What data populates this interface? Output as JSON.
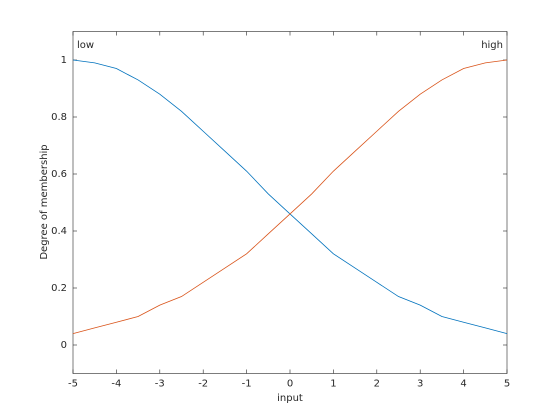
{
  "chart_data": {
    "type": "line",
    "xlabel": "input",
    "ylabel": "Degree of membership",
    "annotations": [
      "low",
      "high"
    ],
    "x": [
      -5,
      -4.5,
      -4,
      -3.5,
      -3,
      -2.5,
      -2,
      -1.5,
      -1,
      -0.5,
      0,
      0.5,
      1,
      1.5,
      2,
      2.5,
      3,
      3.5,
      4,
      4.5,
      5
    ],
    "series": [
      {
        "name": "low",
        "color": "#0072bd",
        "values": [
          1,
          0.99,
          0.97,
          0.93,
          0.88,
          0.82,
          0.75,
          0.68,
          0.61,
          0.53,
          0.46,
          0.39,
          0.32,
          0.27,
          0.22,
          0.17,
          0.14,
          0.1,
          0.08,
          0.06,
          0.04
        ]
      },
      {
        "name": "high",
        "color": "#d95319",
        "values": [
          0.04,
          0.06,
          0.08,
          0.1,
          0.14,
          0.17,
          0.22,
          0.27,
          0.32,
          0.39,
          0.46,
          0.53,
          0.61,
          0.68,
          0.75,
          0.82,
          0.88,
          0.93,
          0.97,
          0.99,
          1
        ]
      }
    ],
    "xlim": [
      -5,
      5
    ],
    "ylim": [
      -0.1,
      1.1
    ],
    "xticks": [
      -5,
      -4,
      -3,
      -2,
      -1,
      0,
      1,
      2,
      3,
      4,
      5
    ],
    "yticks": [
      0,
      0.2,
      0.4,
      0.6,
      0.8,
      1
    ],
    "grid": false
  }
}
